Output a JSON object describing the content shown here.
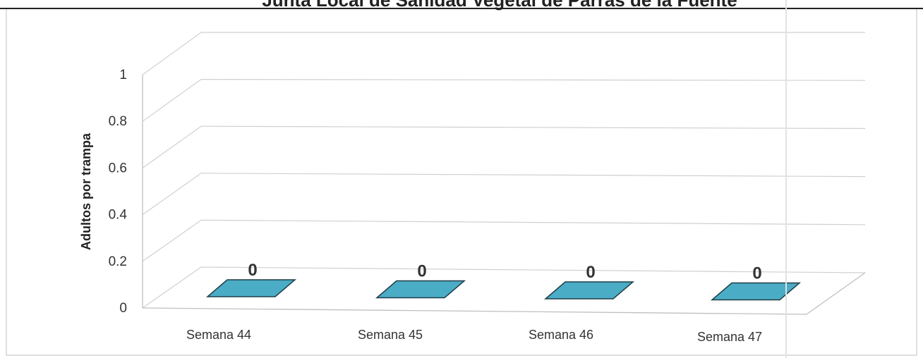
{
  "chart_data": {
    "type": "bar",
    "title": "Junta Local de Sanidad Vegetal de Parras de la Fuente",
    "xlabel": "",
    "ylabel": "Adultos por trampa",
    "categories": [
      "Semana 44",
      "Semana 45",
      "Semana 46",
      "Semana 47"
    ],
    "series": [
      {
        "values": [
          0,
          0,
          0,
          0
        ]
      }
    ],
    "data_labels": [
      "0",
      "0",
      "0",
      "0"
    ],
    "y_ticks": [
      "0",
      "0.2",
      "0.4",
      "0.6",
      "0.8",
      "1"
    ],
    "ylim": [
      0,
      1
    ],
    "grid": true,
    "legend": "none",
    "three_d": true,
    "colors": {
      "bar": "#4BACC6",
      "bar_edge": "#1F3F48",
      "grid": "#D0D0D0",
      "frame": "#BFBFBF"
    }
  }
}
